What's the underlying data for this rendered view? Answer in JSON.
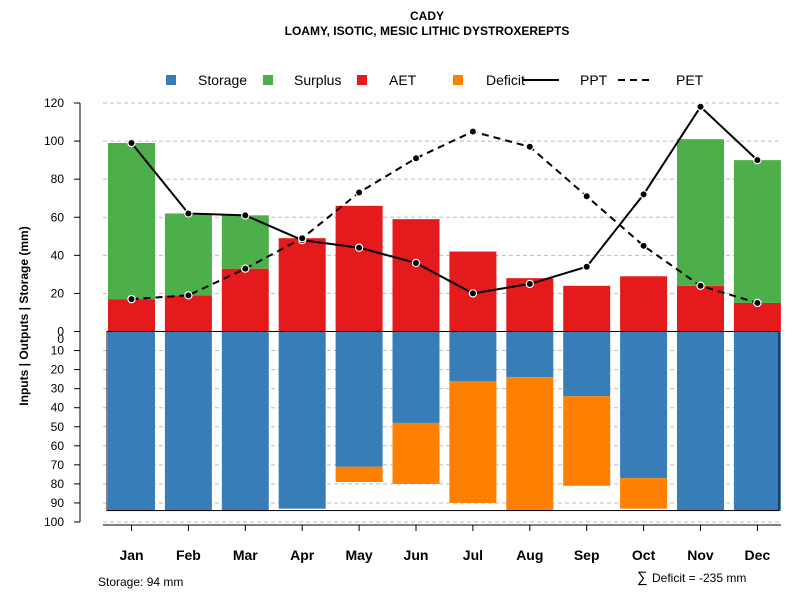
{
  "chart_data": {
    "type": "bar",
    "title": "CADY",
    "subtitle": "LOAMY, ISOTIC, MESIC LITHIC DYSTROXEREPTS",
    "ylabel": "Inputs | Outputs | Storage    (mm)",
    "categories": [
      "Jan",
      "Feb",
      "Mar",
      "Apr",
      "May",
      "Jun",
      "Jul",
      "Aug",
      "Sep",
      "Oct",
      "Nov",
      "Dec"
    ],
    "upper_ylim": [
      0,
      120
    ],
    "upper_ticks": [
      0,
      20,
      40,
      60,
      80,
      100,
      120
    ],
    "lower_ylim": [
      0,
      100
    ],
    "lower_ticks": [
      10,
      20,
      30,
      40,
      50,
      60,
      70,
      80,
      90,
      100
    ],
    "lower_zero_label": "0",
    "grid": true,
    "legend_position": "top",
    "legend": [
      {
        "label": "Storage",
        "kind": "box",
        "color": "#377eb8"
      },
      {
        "label": "Surplus",
        "kind": "box",
        "color": "#4daf4a"
      },
      {
        "label": "AET",
        "kind": "box",
        "color": "#e41a1c"
      },
      {
        "label": "Deficit",
        "kind": "box",
        "color": "#ff7f00"
      },
      {
        "label": "PPT",
        "kind": "line"
      },
      {
        "label": "PET",
        "kind": "dash"
      }
    ],
    "series": [
      {
        "name": "AET",
        "color": "#e41a1c",
        "values": [
          17,
          19,
          33,
          49,
          66,
          59,
          42,
          28,
          24,
          29,
          24,
          15
        ]
      },
      {
        "name": "Surplus",
        "color": "#4daf4a",
        "values": [
          82,
          43,
          28,
          0,
          0,
          0,
          0,
          0,
          0,
          0,
          77,
          75
        ]
      },
      {
        "name": "Storage",
        "color": "#377eb8",
        "values": [
          94,
          94,
          94,
          93,
          71,
          48,
          26,
          24,
          34,
          77,
          94,
          94
        ]
      },
      {
        "name": "Deficit",
        "color": "#ff7f00",
        "values": [
          0,
          0,
          0,
          0,
          8,
          32,
          64,
          70,
          47,
          16,
          0,
          0
        ]
      },
      {
        "name": "PPT",
        "style": "solid",
        "values": [
          99,
          62,
          61,
          48,
          44,
          36,
          20,
          25,
          34,
          72,
          118,
          90
        ]
      },
      {
        "name": "PET",
        "style": "dashed",
        "values": [
          17,
          19,
          33,
          49,
          73,
          91,
          105,
          97,
          71,
          45,
          24,
          15
        ]
      }
    ],
    "annotations": {
      "storage": "Storage: 94 mm",
      "deficit_symbol": "∑",
      "deficit": "Deficit = -235 mm"
    }
  }
}
